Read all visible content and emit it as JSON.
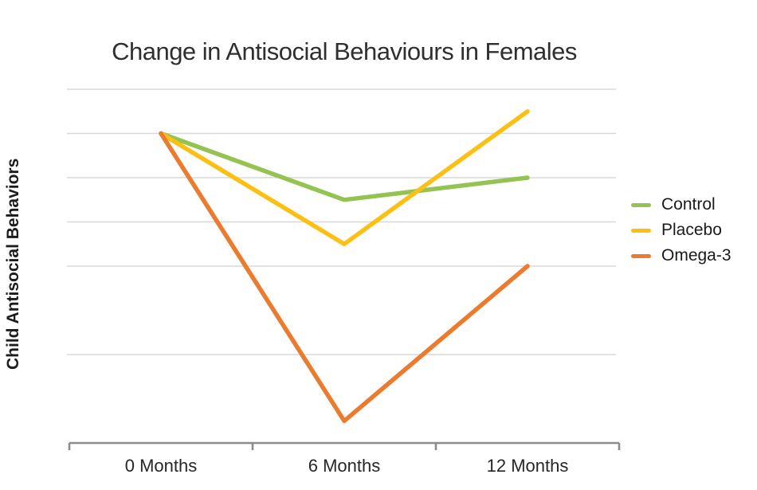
{
  "page": {
    "background": "#ffffff"
  },
  "chart_data": {
    "type": "line",
    "title": "Change in Antisocial Behaviours in Females",
    "xlabel": "",
    "ylabel": "Child Antisocial Behaviors",
    "categories": [
      "0 Months",
      "6 Months",
      "12 Months"
    ],
    "series": [
      {
        "name": "Control",
        "color": "#94C352",
        "values": [
          7,
          5.5,
          6
        ]
      },
      {
        "name": "Placebo",
        "color": "#FCC015",
        "values": [
          7,
          4.5,
          7.5
        ]
      },
      {
        "name": "Omega-3",
        "color": "#EB7B2E",
        "values": [
          7,
          0.5,
          4
        ]
      }
    ],
    "ylim": [
      0,
      8.35
    ],
    "y_tick_labels": "none visible",
    "visible_gridline_values": [
      2,
      4,
      5,
      6,
      7,
      8
    ],
    "grid": "horizontal only",
    "legend_position": "right",
    "draw_order_note": "Placebo line drawn over Control at their crossing; Omega-3 topmost",
    "value_note": "y values estimated in gridline units above the x-axis baseline (no numeric y labels shown)",
    "axis_color": "#8c8c8c",
    "gridline_color": "#d8d8d8",
    "text_color": "#2b2b2b"
  }
}
